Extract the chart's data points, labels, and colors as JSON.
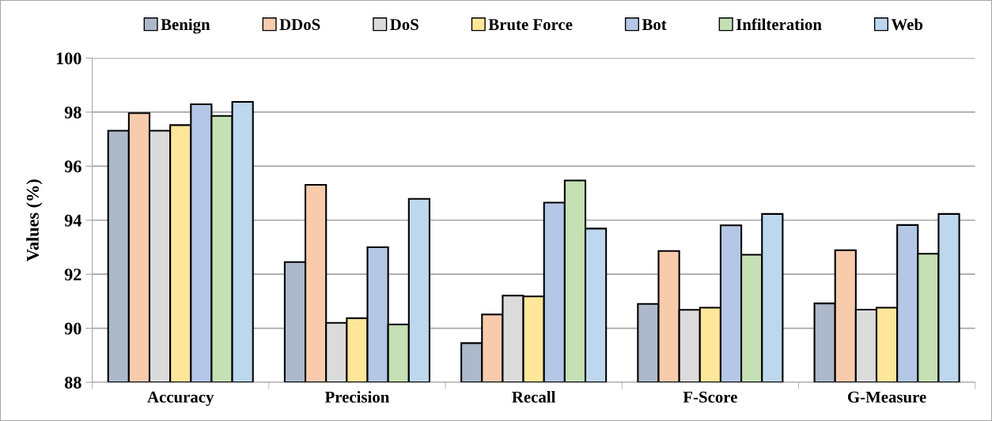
{
  "chart_data": {
    "type": "bar",
    "ylabel": "Values (%)",
    "categories": [
      "Accuracy",
      "Precision",
      "Recall",
      "F-Score",
      "G-Measure"
    ],
    "series": [
      {
        "name": "Benign",
        "color": "#adb9ca",
        "values": [
          97.31,
          92.45,
          89.45,
          90.9,
          90.92
        ]
      },
      {
        "name": "DDoS",
        "color": "#f8cbad",
        "values": [
          97.96,
          95.31,
          90.51,
          92.86,
          92.89
        ]
      },
      {
        "name": "DoS",
        "color": "#dbdbdb",
        "values": [
          97.31,
          90.2,
          91.21,
          90.68,
          90.69
        ]
      },
      {
        "name": "Brute Force",
        "color": "#ffe699",
        "values": [
          97.52,
          90.37,
          91.18,
          90.76,
          90.76
        ]
      },
      {
        "name": "Bot",
        "color": "#b4c7e7",
        "values": [
          98.29,
          93.0,
          94.65,
          93.81,
          93.82
        ]
      },
      {
        "name": "Infilteration",
        "color": "#c5e0b4",
        "values": [
          97.86,
          90.14,
          95.47,
          92.72,
          92.76
        ]
      },
      {
        "name": "Web",
        "color": "#bdd7ee",
        "values": [
          98.38,
          94.79,
          93.69,
          94.23,
          94.23
        ]
      }
    ],
    "ylim": [
      88,
      100
    ],
    "yticks": [
      88,
      90,
      92,
      94,
      96,
      98,
      100
    ],
    "grid": "y",
    "legend": "top"
  }
}
